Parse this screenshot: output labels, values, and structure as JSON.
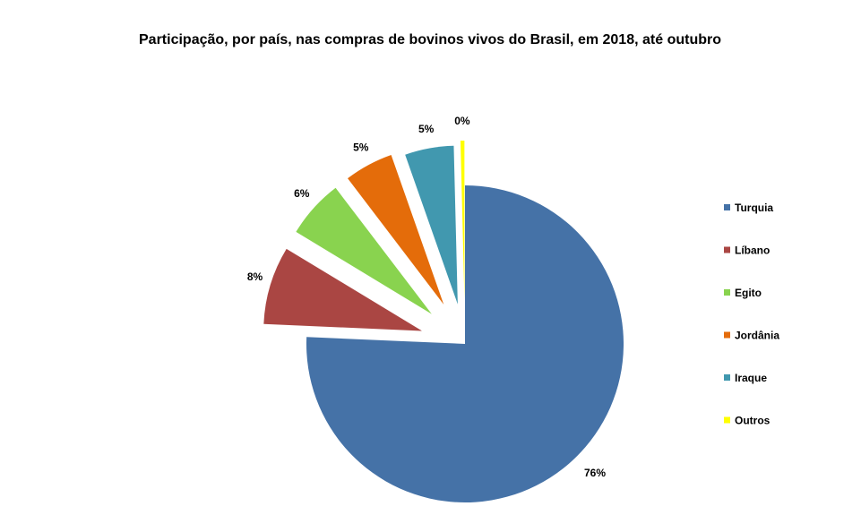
{
  "chart_data": {
    "type": "pie",
    "title": "Participação, por país, nas compras de bovinos vivos do Brasil, em 2018, até outubro",
    "legend_position": "right",
    "exploded": true,
    "slices": [
      {
        "name": "Turquia",
        "value": 76,
        "label": "76%",
        "color": "#4572A7"
      },
      {
        "name": "Líbano",
        "value": 8,
        "label": "8%",
        "color": "#AA4643"
      },
      {
        "name": "Egito",
        "value": 6,
        "label": "6%",
        "color": "#89D34F"
      },
      {
        "name": "Jordânia",
        "value": 5,
        "label": "5%",
        "color": "#E46C0A"
      },
      {
        "name": "Iraque",
        "value": 5,
        "label": "5%",
        "color": "#4198AF"
      },
      {
        "name": "Outros",
        "value": 0.4,
        "label": "0%",
        "color": "#FFFF00"
      }
    ]
  }
}
